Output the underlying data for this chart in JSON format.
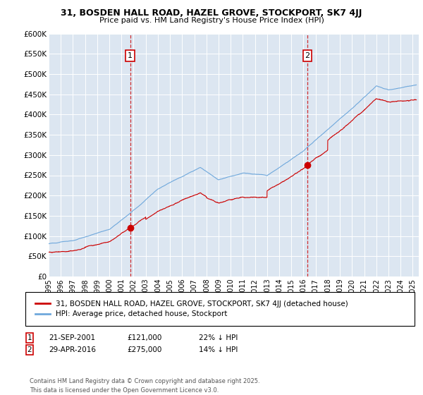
{
  "title": "31, BOSDEN HALL ROAD, HAZEL GROVE, STOCKPORT, SK7 4JJ",
  "subtitle": "Price paid vs. HM Land Registry's House Price Index (HPI)",
  "ylabel_ticks": [
    "£0",
    "£50K",
    "£100K",
    "£150K",
    "£200K",
    "£250K",
    "£300K",
    "£350K",
    "£400K",
    "£450K",
    "£500K",
    "£550K",
    "£600K"
  ],
  "ylim": [
    0,
    600000
  ],
  "xlim_start": 1995.0,
  "xlim_end": 2025.5,
  "sale1_x": 2001.72,
  "sale1_y": 121000,
  "sale1_label": "1",
  "sale1_date": "21-SEP-2001",
  "sale1_price": "£121,000",
  "sale1_hpi": "22% ↓ HPI",
  "sale2_x": 2016.33,
  "sale2_y": 275000,
  "sale2_label": "2",
  "sale2_date": "29-APR-2016",
  "sale2_price": "£275,000",
  "sale2_hpi": "14% ↓ HPI",
  "hpi_color": "#6fa8dc",
  "price_color": "#cc0000",
  "marker_color": "#cc0000",
  "legend_label_price": "31, BOSDEN HALL ROAD, HAZEL GROVE, STOCKPORT, SK7 4JJ (detached house)",
  "legend_label_hpi": "HPI: Average price, detached house, Stockport",
  "footnote_line1": "Contains HM Land Registry data © Crown copyright and database right 2025.",
  "footnote_line2": "This data is licensed under the Open Government Licence v3.0.",
  "background_color": "#dce6f1"
}
